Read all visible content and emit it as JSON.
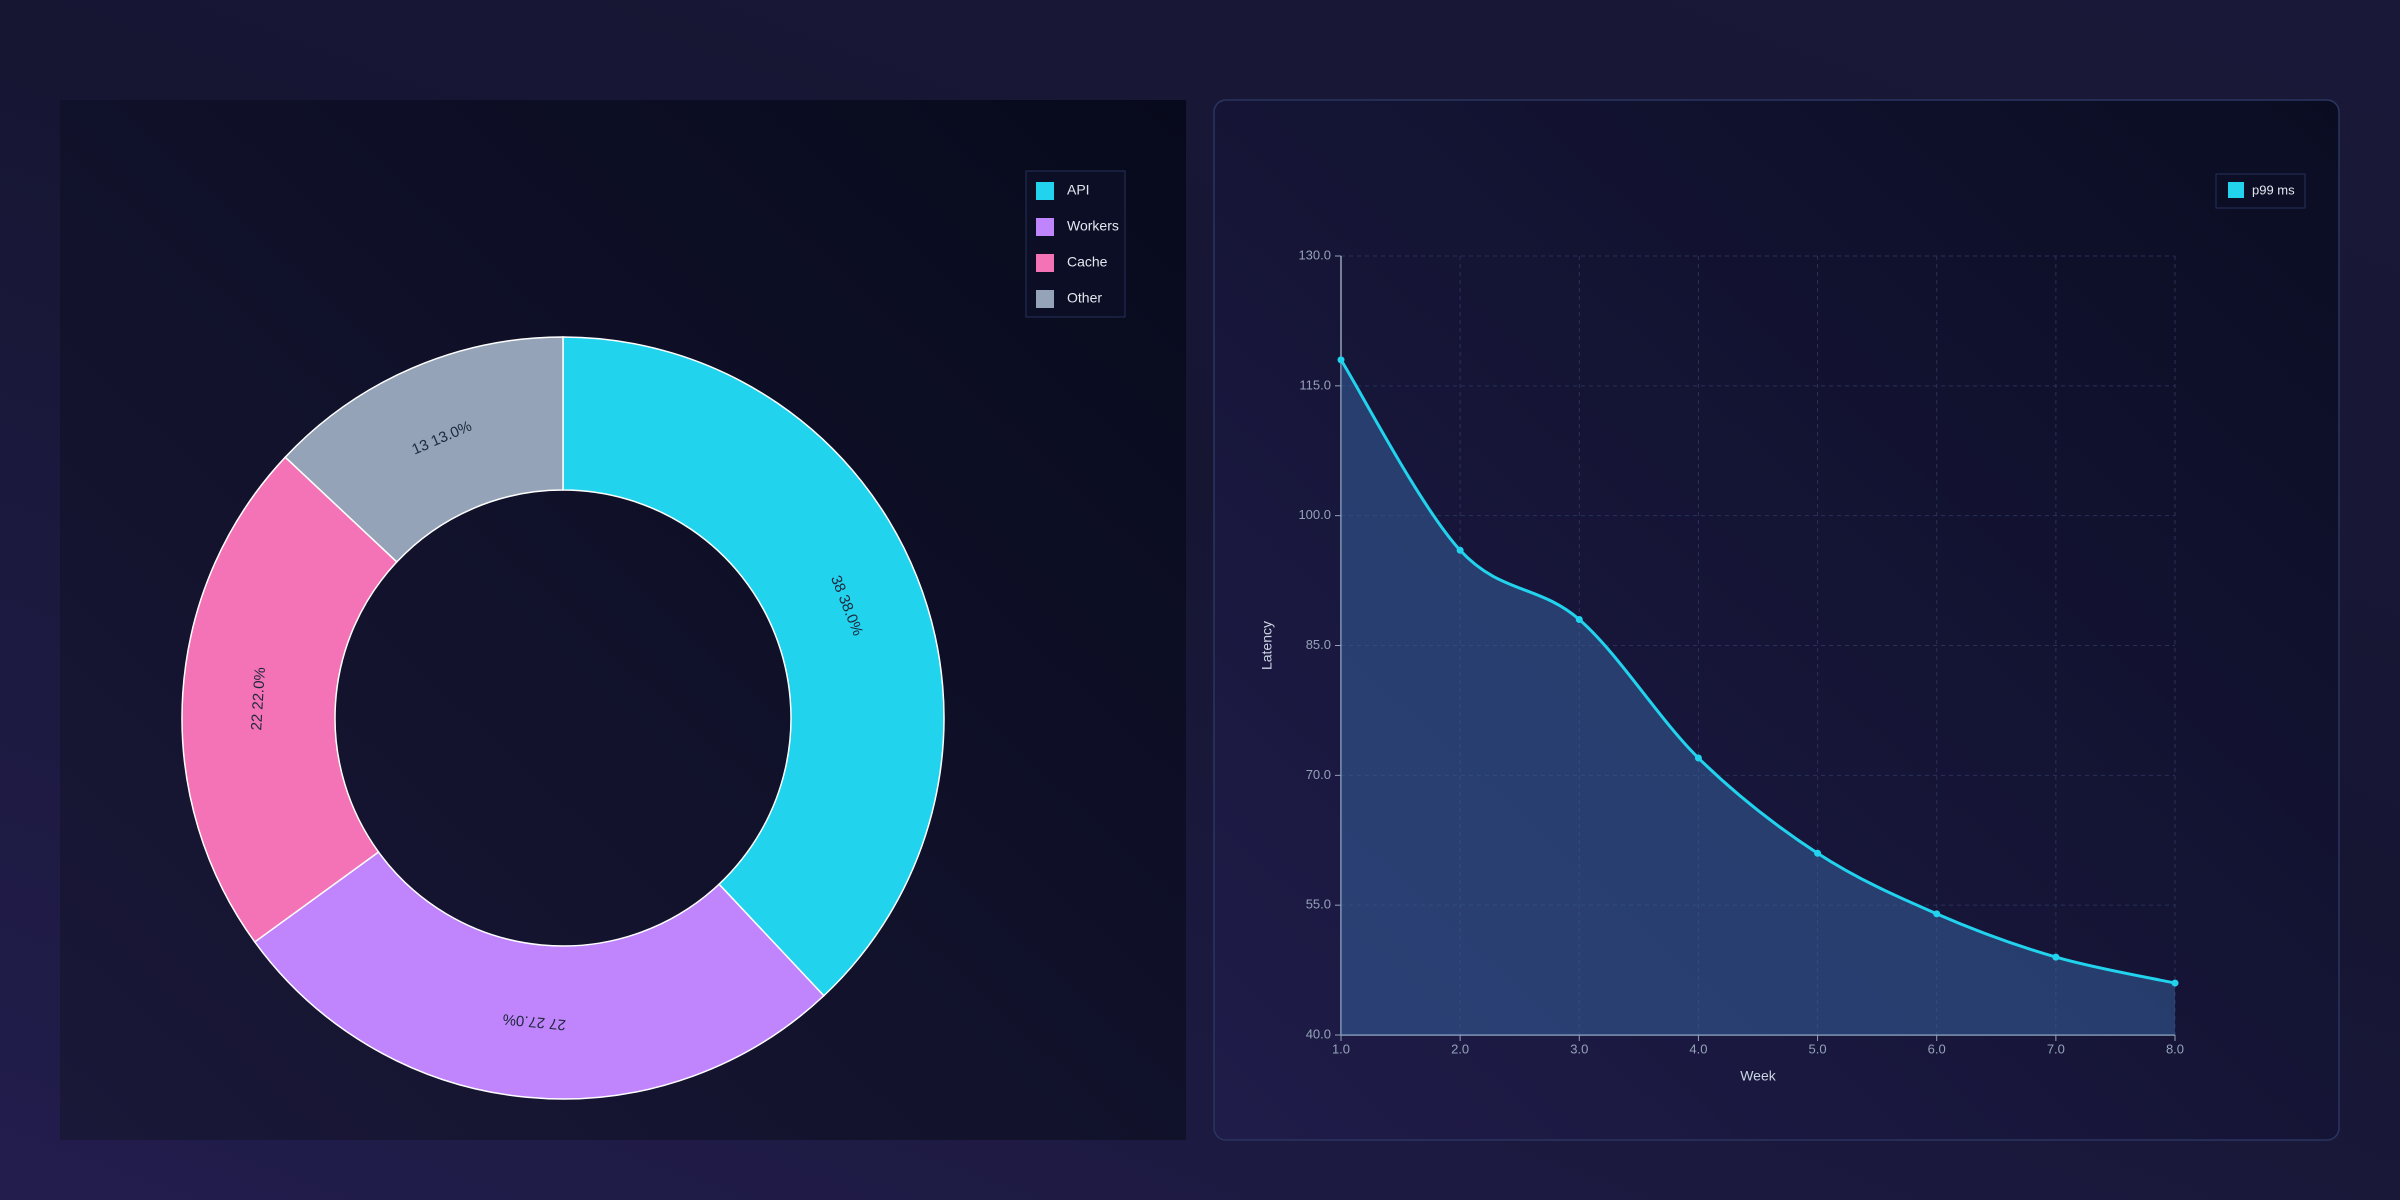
{
  "chart_data": [
    {
      "type": "donut",
      "categories": [
        "API",
        "Workers",
        "Cache",
        "Other"
      ],
      "values": [
        38,
        27,
        22,
        13
      ],
      "value_labels": [
        "38 38.0%",
        "27 27.0%",
        "22 22.0%",
        "13 13.0%"
      ],
      "colors": [
        "#22d3ee",
        "#c084fc",
        "#f472b6",
        "#94a3b8"
      ],
      "legend": "upper right"
    },
    {
      "type": "line",
      "x": [
        1,
        2,
        3,
        4,
        5,
        6,
        7,
        8
      ],
      "series": [
        {
          "name": "p99 ms",
          "color": "#22d3ee",
          "values": [
            118,
            96,
            88,
            72,
            61,
            54,
            49,
            46
          ]
        }
      ],
      "xlabel": "Week",
      "ylabel": "Latency",
      "xlim": [
        1,
        8
      ],
      "ylim": [
        40,
        130
      ],
      "xticks": [
        {
          "value": 1,
          "label": "1.0"
        },
        {
          "value": 2,
          "label": "2.0"
        },
        {
          "value": 3,
          "label": "3.0"
        },
        {
          "value": 4,
          "label": "4.0"
        },
        {
          "value": 5,
          "label": "5.0"
        },
        {
          "value": 6,
          "label": "6.0"
        },
        {
          "value": 7,
          "label": "7.0"
        },
        {
          "value": 8,
          "label": "8.0"
        }
      ],
      "yticks": [
        {
          "value": 40,
          "label": "40.0"
        },
        {
          "value": 55,
          "label": "55.0"
        },
        {
          "value": 70,
          "label": "70.0"
        },
        {
          "value": 85,
          "label": "85.0"
        },
        {
          "value": 100,
          "label": "100.0"
        },
        {
          "value": 115,
          "label": "115.0"
        },
        {
          "value": 130,
          "label": "130.0"
        }
      ],
      "grid": true,
      "area": true,
      "legend": "upper right"
    }
  ]
}
